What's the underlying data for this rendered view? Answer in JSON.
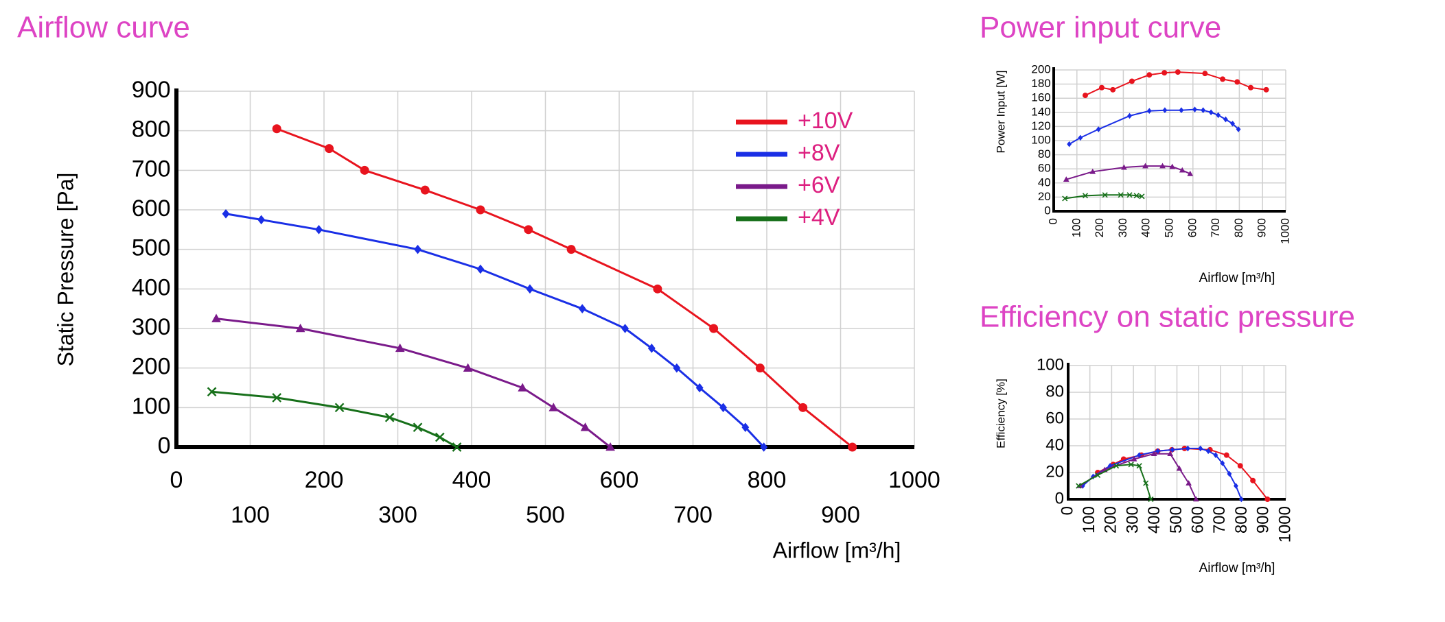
{
  "chart_data": [
    {
      "type": "line",
      "title": "Airflow curve",
      "x_label": "Airflow [m³/h]",
      "y_label": "Static Pressure [Pa]",
      "xlim": [
        0,
        1000
      ],
      "xticks": [
        0,
        100,
        200,
        300,
        400,
        500,
        600,
        700,
        800,
        900,
        1000
      ],
      "ylim": [
        0,
        900
      ],
      "yticks": [
        0,
        100,
        200,
        300,
        400,
        500,
        600,
        700,
        800,
        900
      ],
      "grid": true,
      "legend": "upper right",
      "series": [
        {
          "name": "+10V",
          "color": "#e8141e",
          "marker": "circle",
          "x": [
            136,
            207,
            255,
            337,
            412,
            477,
            535,
            652,
            728,
            791,
            849,
            916
          ],
          "values": [
            805,
            755,
            700,
            650,
            600,
            550,
            500,
            400,
            300,
            200,
            100,
            0
          ]
        },
        {
          "name": "+8V",
          "color": "#1a2fe6",
          "marker": "diamond",
          "x": [
            67,
            115,
            193,
            327,
            412,
            479,
            550,
            608,
            644,
            678,
            709,
            741,
            771,
            796
          ],
          "values": [
            590,
            575,
            550,
            500,
            450,
            400,
            350,
            300,
            250,
            200,
            150,
            100,
            50,
            0
          ]
        },
        {
          "name": "+6V",
          "color": "#7a1a8a",
          "marker": "triangle",
          "x": [
            54,
            168,
            303,
            395,
            469,
            511,
            554,
            588
          ],
          "values": [
            325,
            300,
            250,
            200,
            150,
            100,
            50,
            0
          ]
        },
        {
          "name": "+4V",
          "color": "#17701a",
          "marker": "cross",
          "x": [
            48,
            136,
            221,
            289,
            327,
            357,
            380
          ],
          "values": [
            140,
            125,
            100,
            75,
            50,
            25,
            0
          ]
        }
      ]
    },
    {
      "type": "line",
      "title": "Power input curve",
      "x_label": "Airflow  [m³/h]",
      "y_label": "Power Input [W]",
      "xlim": [
        0,
        1000
      ],
      "xticks": [
        0,
        100,
        200,
        300,
        400,
        500,
        600,
        700,
        800,
        900,
        1000
      ],
      "ylim": [
        0,
        200
      ],
      "yticks": [
        0,
        20,
        40,
        60,
        80,
        100,
        120,
        140,
        160,
        180,
        200
      ],
      "grid": true,
      "series": [
        {
          "color": "#e8141e",
          "marker": "circle",
          "x": [
            136,
            207,
            255,
            337,
            412,
            477,
            535,
            652,
            728,
            791,
            849,
            916
          ],
          "values": [
            164,
            175,
            172,
            184,
            193,
            196,
            197,
            195,
            187,
            183,
            175,
            172
          ]
        },
        {
          "color": "#1a2fe6",
          "marker": "diamond",
          "x": [
            67,
            115,
            193,
            327,
            412,
            479,
            550,
            608,
            644,
            678,
            709,
            741,
            771,
            796
          ],
          "values": [
            95,
            104,
            116,
            135,
            142,
            143,
            143,
            144,
            143,
            140,
            136,
            130,
            124,
            116
          ]
        },
        {
          "color": "#7a1a8a",
          "marker": "triangle",
          "x": [
            54,
            168,
            303,
            395,
            469,
            511,
            554,
            588
          ],
          "values": [
            45,
            56,
            62,
            64,
            64,
            63,
            58,
            53
          ]
        },
        {
          "color": "#17701a",
          "marker": "cross",
          "x": [
            48,
            136,
            221,
            289,
            327,
            357,
            380
          ],
          "values": [
            18,
            22,
            23,
            23,
            23,
            22,
            21
          ]
        }
      ]
    },
    {
      "type": "line",
      "title": "Efficiency on static pressure",
      "x_label": "Airflow  [m³/h]",
      "y_label": "Efficiency [%]",
      "xlim": [
        0,
        1000
      ],
      "xticks": [
        0,
        100,
        200,
        300,
        400,
        500,
        600,
        700,
        800,
        900,
        1000
      ],
      "ylim": [
        0,
        100
      ],
      "yticks": [
        0,
        20,
        40,
        60,
        80,
        100
      ],
      "grid": true,
      "series": [
        {
          "color": "#e8141e",
          "marker": "circle",
          "x": [
            136,
            207,
            255,
            337,
            412,
            477,
            535,
            652,
            728,
            791,
            849,
            916
          ],
          "values": [
            20,
            26,
            30,
            33,
            36,
            37,
            38,
            37,
            33,
            25,
            14,
            0
          ]
        },
        {
          "color": "#1a2fe6",
          "marker": "diamond",
          "x": [
            67,
            115,
            193,
            327,
            412,
            479,
            550,
            608,
            644,
            678,
            709,
            741,
            771,
            796
          ],
          "values": [
            10,
            17,
            25,
            33,
            36,
            37,
            38,
            38,
            36,
            33,
            27,
            19,
            10,
            0
          ]
        },
        {
          "color": "#7a1a8a",
          "marker": "triangle",
          "x": [
            54,
            168,
            303,
            395,
            469,
            511,
            554,
            588
          ],
          "values": [
            10,
            22,
            30,
            34,
            34,
            23,
            12,
            0
          ]
        },
        {
          "color": "#17701a",
          "marker": "cross",
          "x": [
            48,
            136,
            221,
            289,
            327,
            357,
            380
          ],
          "values": [
            10,
            18,
            25,
            26,
            25,
            12,
            0
          ]
        }
      ]
    }
  ]
}
